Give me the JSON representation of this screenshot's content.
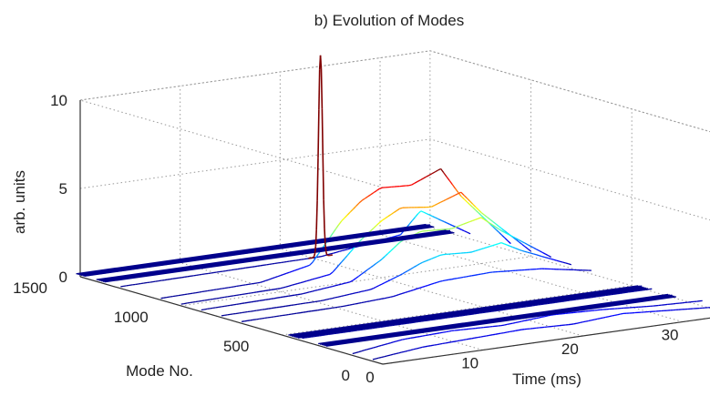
{
  "chart_data": {
    "type": "waterfall-3d",
    "title": "b) Evolution of Modes",
    "xlabel": "Time (ms)",
    "ylabel": "Mode No.",
    "zlabel": "arb. units",
    "xlim": [
      0,
      35
    ],
    "ylim": [
      0,
      1500
    ],
    "zlim": [
      0,
      10
    ],
    "x_ticks": [
      "0",
      "10",
      "20",
      "30"
    ],
    "y_ticks": [
      "0",
      "500",
      "1000",
      "1500"
    ],
    "z_ticks": [
      "0",
      "5",
      "10"
    ],
    "grid": true,
    "colormap": "jet",
    "curves": [
      {
        "mode": 1500,
        "x": [
          0,
          35
        ],
        "y": [
          0.15,
          0.15
        ]
      },
      {
        "mode": 1400,
        "x": [
          0,
          35
        ],
        "y": [
          0.15,
          0.15
        ]
      },
      {
        "mode": 1300,
        "x": [
          0,
          20,
          28,
          30,
          35
        ],
        "y": [
          0.1,
          0.2,
          0.8,
          2.0,
          0.3
        ]
      },
      {
        "mode": 1100,
        "x": [
          0,
          10,
          15,
          18,
          20,
          22,
          25,
          28,
          30,
          35
        ],
        "y": [
          0.1,
          0.2,
          0.8,
          3.0,
          4.0,
          4.6,
          4.5,
          5.2,
          3.5,
          0.4
        ]
      },
      {
        "mode": 1000,
        "x": [
          0,
          10,
          15,
          18,
          20,
          22,
          25,
          28,
          30,
          35
        ],
        "y": [
          0.1,
          0.2,
          0.6,
          2.3,
          3.2,
          3.8,
          3.6,
          4.2,
          2.9,
          0.3
        ]
      },
      {
        "mode": 900,
        "x": [
          0,
          10,
          15,
          18,
          20,
          22,
          25,
          28,
          30,
          35
        ],
        "y": [
          0.1,
          0.2,
          0.5,
          1.5,
          2.4,
          2.8,
          2.7,
          3.1,
          2.2,
          0.3
        ]
      },
      {
        "mode": 800,
        "x": [
          0,
          10,
          15,
          18,
          20,
          22,
          25,
          28,
          30,
          35
        ],
        "y": [
          0.1,
          0.15,
          0.4,
          1.0,
          1.5,
          1.8,
          1.7,
          2.0,
          1.4,
          0.2
        ]
      },
      {
        "mode": 700,
        "x": [
          0,
          10,
          15,
          20,
          25,
          30,
          35
        ],
        "y": [
          0.1,
          0.15,
          0.3,
          0.8,
          0.9,
          0.7,
          0.2
        ]
      },
      {
        "mode": 450,
        "x": [
          0,
          35
        ],
        "y": [
          0.15,
          0.15
        ]
      },
      {
        "mode": 400,
        "x": [
          0,
          35
        ],
        "y": [
          0.15,
          0.15
        ]
      },
      {
        "mode": 300,
        "x": [
          0,
          35
        ],
        "y": [
          0.12,
          0.12
        ]
      },
      {
        "mode": 150,
        "x": [
          0,
          5,
          10,
          15,
          20,
          25,
          30,
          35
        ],
        "y": [
          0.1,
          0.5,
          0.6,
          0.5,
          0.7,
          0.6,
          0.4,
          0.3
        ]
      },
      {
        "mode": 50,
        "x": [
          0,
          5,
          10,
          15,
          20,
          25,
          30,
          35
        ],
        "y": [
          0.1,
          0.4,
          0.5,
          0.6,
          0.5,
          0.7,
          0.5,
          0.3
        ]
      }
    ],
    "spike": {
      "mode": 1300,
      "x": 20,
      "peak": 11.5
    }
  }
}
